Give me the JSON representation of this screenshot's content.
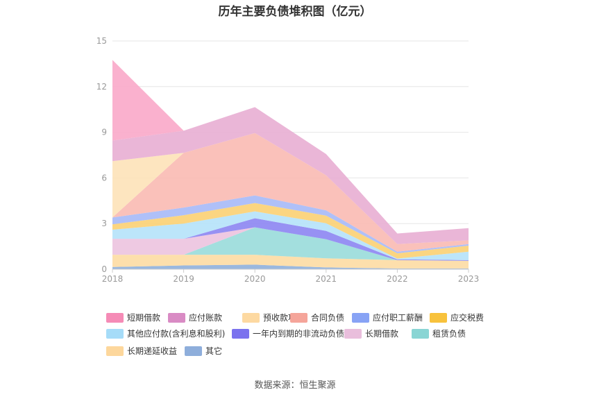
{
  "chart_data": {
    "type": "area",
    "stacked": true,
    "title": "历年主要负债堆积图（亿元）",
    "xlabel": "",
    "ylabel": "",
    "categories": [
      "2018",
      "2019",
      "2020",
      "2021",
      "2022",
      "2023"
    ],
    "ylim": [
      0,
      15
    ],
    "yticks": [
      0,
      3,
      6,
      9,
      12,
      15
    ],
    "grid": true,
    "legend_position": "bottom",
    "series": [
      {
        "name": "其它",
        "color": "#8fb0dc",
        "values": [
          0.15,
          0.25,
          0.3,
          0.12,
          0.05,
          0.05
        ]
      },
      {
        "name": "长期递延收益",
        "color": "#fddca3",
        "values": [
          0.8,
          0.7,
          0.65,
          0.6,
          0.55,
          0.5
        ]
      },
      {
        "name": "租赁负债",
        "color": "#99dcda",
        "values": [
          0,
          0,
          1.8,
          1.25,
          0,
          0
        ]
      },
      {
        "name": "长期借款",
        "color": "#ecc3df",
        "values": [
          1.05,
          1.05,
          0,
          0,
          0,
          0
        ]
      },
      {
        "name": "一年内到期的非流动负债",
        "color": "#8c85f2",
        "values": [
          0,
          0,
          0.6,
          0.55,
          0.05,
          0.05
        ]
      },
      {
        "name": "其他应付款(含利息和股利)",
        "color": "#b5e2f9",
        "values": [
          0.6,
          1.0,
          0.45,
          0.5,
          0.05,
          0.55
        ]
      },
      {
        "name": "应交税费",
        "color": "#fbd073",
        "values": [
          0.35,
          0.55,
          0.55,
          0.5,
          0.35,
          0.4
        ]
      },
      {
        "name": "应付职工薪酬",
        "color": "#a6b9f7",
        "values": [
          0.45,
          0.5,
          0.5,
          0.35,
          0.1,
          0.1
        ]
      },
      {
        "name": "合同负债",
        "color": "#f9bab2",
        "values": [
          0,
          3.6,
          4.1,
          2.3,
          0.5,
          0.25
        ]
      },
      {
        "name": "预收款项",
        "color": "#fde2b8",
        "values": [
          3.7,
          0,
          0,
          0,
          0,
          0
        ]
      },
      {
        "name": "应付账款",
        "color": "#e8aed3",
        "values": [
          1.35,
          1.45,
          1.7,
          1.4,
          0.7,
          0.8
        ]
      },
      {
        "name": "短期借款",
        "color": "#f9a9c9",
        "values": [
          5.3,
          0,
          0,
          0,
          0,
          0
        ]
      }
    ]
  },
  "legend": [
    {
      "label": "短期借款",
      "color": "#f58bb6"
    },
    {
      "label": "应付账款",
      "color": "#d98bc4"
    },
    {
      "label": "预收款项",
      "color": "#fdd9a1"
    },
    {
      "label": "合同负债",
      "color": "#f5a59a"
    },
    {
      "label": "应付职工薪酬",
      "color": "#88a3f5"
    },
    {
      "label": "应交税费",
      "color": "#f8c23c"
    },
    {
      "label": "其他应付款(含利息和股利)",
      "color": "#a6dcf8"
    },
    {
      "label": "一年内到期的非流动负债",
      "color": "#7b72ee"
    },
    {
      "label": "长期借款",
      "color": "#e9bedc"
    },
    {
      "label": "租赁负债",
      "color": "#89d5d4"
    },
    {
      "label": "长期递延收益",
      "color": "#fdd79c"
    },
    {
      "label": "其它",
      "color": "#8eaedb"
    }
  ],
  "footer": {
    "source": "数据来源：恒生聚源"
  }
}
